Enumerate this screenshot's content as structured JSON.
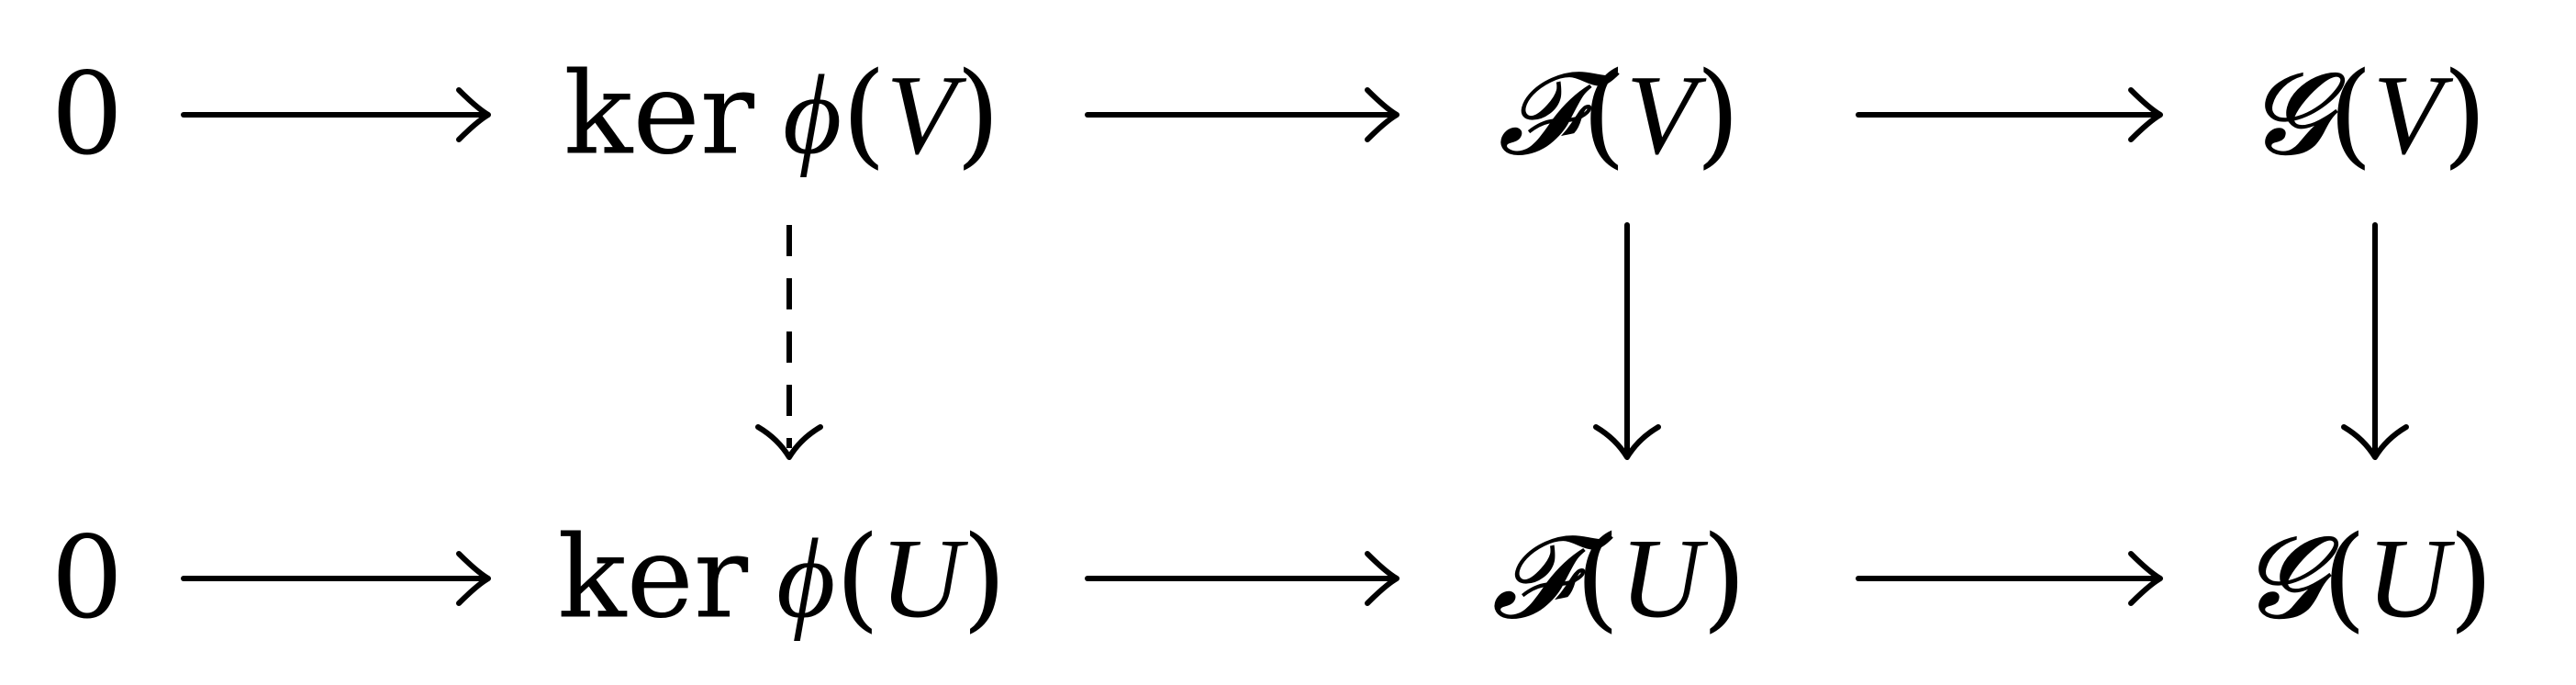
{
  "rows": [
    {
      "zero": "0",
      "ker": "ker",
      "phi": "ϕ",
      "open": "(",
      "close": ")",
      "set": "V",
      "F": "𝓕",
      "G": "𝓖"
    },
    {
      "zero": "0",
      "ker": "ker",
      "phi": "ϕ",
      "open": "(",
      "close": ")",
      "set": "U",
      "F": "𝓕",
      "G": "𝓖"
    }
  ],
  "arrows": {
    "horizontal": [
      {
        "from": "0",
        "to": "ker ϕ(V)",
        "style": "solid"
      },
      {
        "from": "ker ϕ(V)",
        "to": "𝓕(V)",
        "style": "solid"
      },
      {
        "from": "𝓕(V)",
        "to": "𝓖(V)",
        "style": "solid"
      },
      {
        "from": "0",
        "to": "ker ϕ(U)",
        "style": "solid"
      },
      {
        "from": "ker ϕ(U)",
        "to": "𝓕(U)",
        "style": "solid"
      },
      {
        "from": "𝓕(U)",
        "to": "𝓖(U)",
        "style": "solid"
      }
    ],
    "vertical": [
      {
        "from": "ker ϕ(V)",
        "to": "ker ϕ(U)",
        "style": "dashed"
      },
      {
        "from": "𝓕(V)",
        "to": "𝓕(U)",
        "style": "solid"
      },
      {
        "from": "𝓖(V)",
        "to": "𝓖(U)",
        "style": "solid"
      }
    ]
  },
  "colors": {
    "ink": "#000000",
    "background": "#ffffff"
  }
}
